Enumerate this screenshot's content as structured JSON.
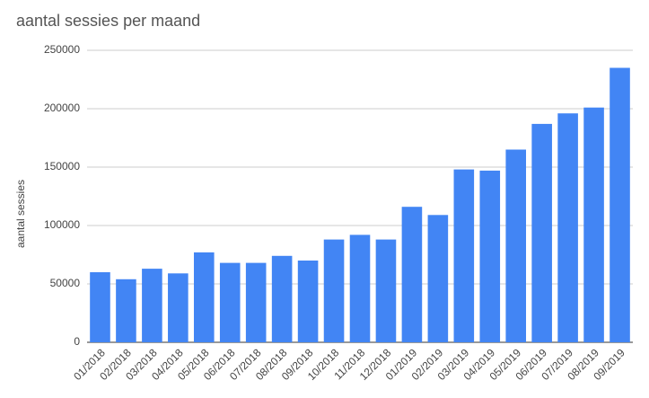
{
  "chart_data": {
    "type": "bar",
    "title": "aantal sessies per maand",
    "y_label": "aantal sessies",
    "categories": [
      "01/2018",
      "02/2018",
      "03/2018",
      "04/2018",
      "05/2018",
      "06/2018",
      "07/2018",
      "08/2018",
      "09/2018",
      "10/2018",
      "11/2018",
      "12/2018",
      "01/2019",
      "02/2019",
      "03/2019",
      "04/2019",
      "05/2019",
      "06/2019",
      "07/2019",
      "08/2019",
      "09/2019"
    ],
    "values": [
      60000,
      54000,
      63000,
      59000,
      77000,
      68000,
      68000,
      74000,
      70000,
      88000,
      92000,
      88000,
      116000,
      109000,
      148000,
      147000,
      165000,
      187000,
      196000,
      201000,
      235000
    ],
    "color": "#4285f4",
    "ylim": [
      0,
      250000
    ],
    "yticks": [
      0,
      50000,
      100000,
      150000,
      200000,
      250000
    ],
    "grid": true
  }
}
